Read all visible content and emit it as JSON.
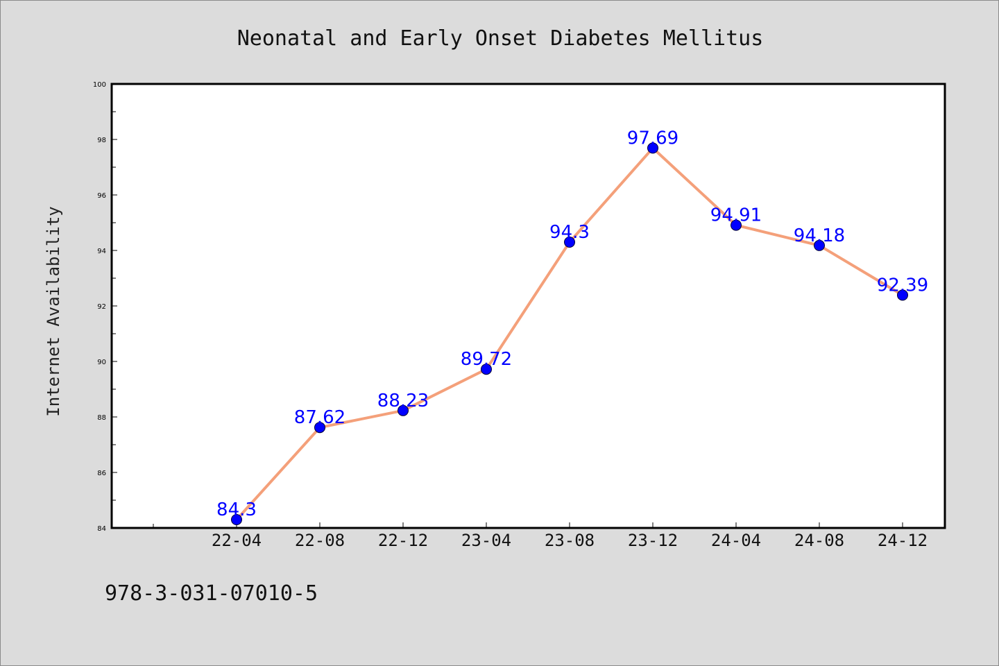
{
  "chart_data": {
    "type": "line",
    "title": "Neonatal and Early Onset Diabetes Mellitus",
    "xlabel": "",
    "ylabel": "Internet Availability",
    "categories": [
      "22-04",
      "22-08",
      "22-12",
      "23-04",
      "23-08",
      "23-12",
      "24-04",
      "24-08",
      "24-12"
    ],
    "values": [
      84.3,
      87.62,
      88.23,
      89.72,
      94.3,
      97.69,
      94.91,
      94.18,
      92.39
    ],
    "data_labels": [
      "84.3",
      "87.62",
      "88.23",
      "89.72",
      "94.3",
      "97.69",
      "94.91",
      "94.18",
      "92.39"
    ],
    "ylim": [
      84,
      100
    ],
    "yticks": [
      84,
      86,
      88,
      90,
      92,
      94,
      96,
      98,
      100
    ],
    "grid": false,
    "colors": {
      "line": "#f4a07a",
      "marker": "#0000ff",
      "label": "#0000ff",
      "background": "#dcdcdc",
      "plot": "#ffffff"
    }
  },
  "footer": {
    "isbn": "978-3-031-07010-5"
  }
}
